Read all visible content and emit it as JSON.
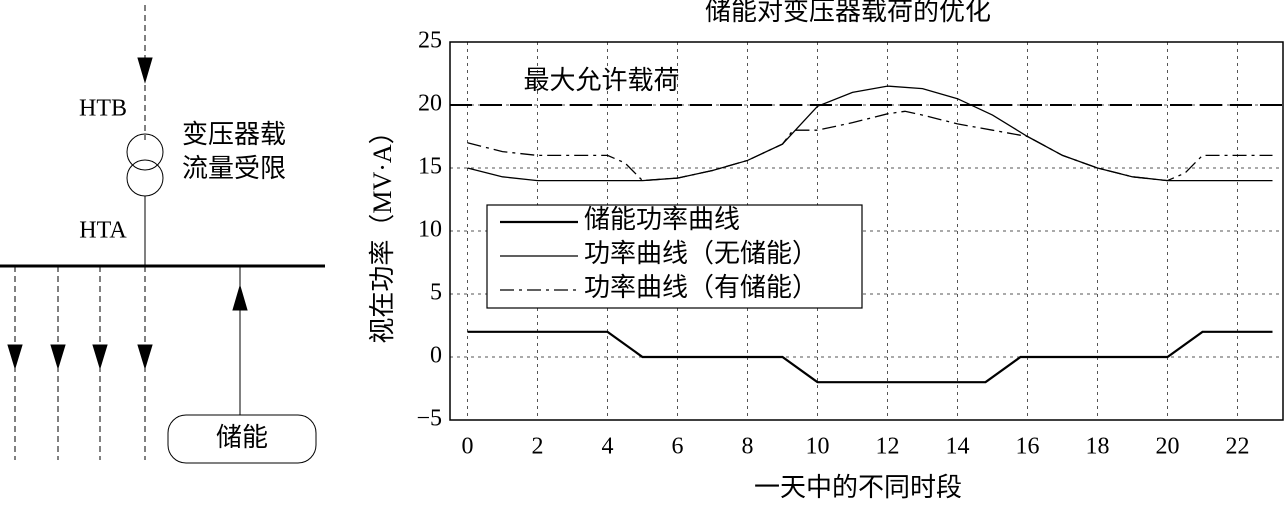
{
  "diagram": {
    "top_label": "HTB",
    "transformer_label": [
      "变压器载",
      "流量受限"
    ],
    "bottom_label": "HTA",
    "storage_label": "储能"
  },
  "chart_data": {
    "type": "line",
    "title": "储能对变压器载荷的优化",
    "xlabel": "一天中的不同时段",
    "ylabel": "视在功率（MV·A）",
    "xlim": [
      -0.5,
      23.3
    ],
    "ylim": [
      -5,
      25
    ],
    "xticks": [
      0,
      2,
      4,
      6,
      8,
      10,
      12,
      14,
      16,
      18,
      20,
      22
    ],
    "yticks": [
      {
        "value": -5,
        "label": "−5"
      },
      0,
      5,
      10,
      15,
      20,
      25
    ],
    "grid": true,
    "hline": {
      "value": 20,
      "label": "最大允许载荷",
      "color": "#000",
      "dash": "22 8"
    },
    "series": [
      {
        "name": "储能功率曲线",
        "color": "#000",
        "width": 2.2,
        "dash": "none",
        "x": [
          0,
          4,
          5,
          9,
          10,
          14.8,
          15.8,
          20,
          21,
          23
        ],
        "values": [
          2,
          2,
          0,
          0,
          -2,
          -2,
          0,
          0,
          2,
          2
        ]
      },
      {
        "name": "功率曲线（无储能）",
        "color": "#000",
        "width": 1.3,
        "dash": "none",
        "x": [
          0,
          1,
          2,
          3,
          4,
          5,
          6,
          7,
          8,
          9,
          10,
          11,
          12,
          13,
          14,
          15,
          16,
          17,
          18,
          19,
          20,
          21,
          22,
          23
        ],
        "values": [
          15,
          14.3,
          14,
          14,
          14,
          14,
          14.2,
          14.8,
          15.6,
          16.9,
          19.9,
          21,
          21.5,
          21.3,
          20.5,
          19.2,
          17.5,
          16,
          15,
          14.3,
          14,
          14,
          14,
          14
        ]
      },
      {
        "name": "功率曲线（有储能）",
        "color": "#000",
        "width": 1.3,
        "dash": "14 5 3 5",
        "x": [
          0,
          1,
          2,
          3,
          4,
          4.5,
          5,
          6,
          7,
          8,
          9,
          9.3,
          10,
          11,
          12,
          12.5,
          13,
          14,
          15,
          16,
          17,
          18,
          19,
          20,
          20.5,
          21,
          22,
          23
        ],
        "values": [
          17,
          16.3,
          16,
          16,
          16,
          15.4,
          14,
          14.2,
          14.8,
          15.6,
          16.9,
          18,
          18,
          18.6,
          19.3,
          19.5,
          19.2,
          18.5,
          18,
          17.5,
          16,
          15,
          14.3,
          14,
          14.6,
          16,
          16,
          16
        ]
      }
    ]
  }
}
